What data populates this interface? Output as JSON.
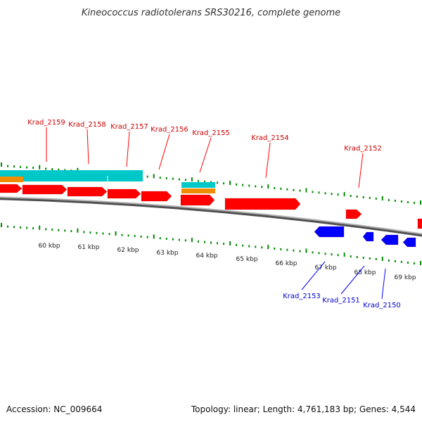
{
  "title": "Kineococcus radiotolerans SRS30216, complete genome",
  "footer": {
    "accession": "Accession: NC_009664",
    "summary": "Topology: linear; Length: 4,761,183 bp; Genes: 4,544"
  },
  "colors": {
    "forward_gene": "#ff0000",
    "reverse_gene": "#0000ff",
    "cds_band": "#00c8c8",
    "feature_band": "#f08c00",
    "tick": "#008800",
    "backbone": "#808080"
  },
  "kbp_ticks": [
    "60 kbp",
    "61 kbp",
    "62 kbp",
    "63 kbp",
    "64 kbp",
    "65 kbp",
    "66 kbp",
    "67 kbp",
    "68 kbp",
    "69 kbp"
  ],
  "forward_labels": [
    "Krad_2159",
    "Krad_2158",
    "Krad_2157",
    "Krad_2156",
    "Krad_2155",
    "Krad_2154",
    "Krad_2152"
  ],
  "reverse_labels": [
    "Krad_2153",
    "Krad_2151",
    "Krad_2150"
  ]
}
